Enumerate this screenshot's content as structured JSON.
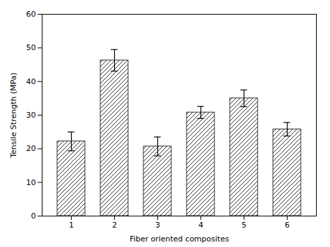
{
  "chart_data": {
    "type": "bar",
    "categories": [
      "1",
      "2",
      "3",
      "4",
      "5",
      "6"
    ],
    "values": [
      22.2,
      46.3,
      20.7,
      30.8,
      35.0,
      25.8
    ],
    "errors": [
      2.8,
      3.2,
      2.8,
      1.8,
      2.5,
      2.0
    ],
    "xlabel": "Fiber oriented composites",
    "ylabel": "Tensile Strength (MPa)",
    "color": "#ffffff",
    "ylim": [
      0,
      60
    ],
    "yticks": [
      0,
      10,
      20,
      30,
      40,
      50,
      60
    ],
    "grid": false
  }
}
